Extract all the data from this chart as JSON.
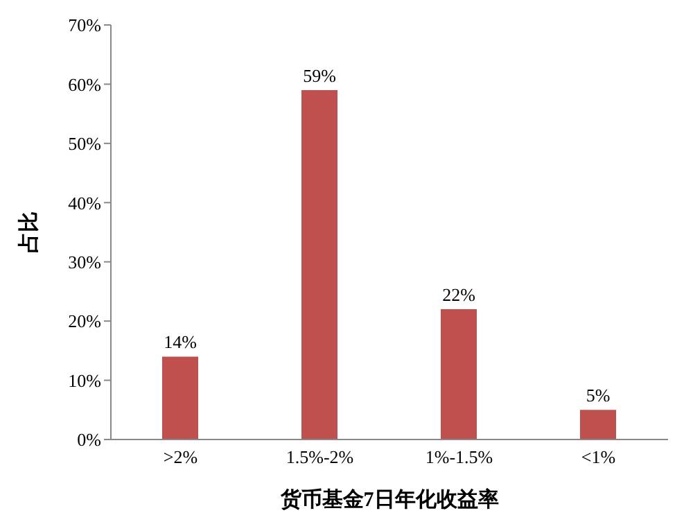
{
  "chart_data": {
    "type": "bar",
    "xlabel": "货币基金7日年化收益率",
    "ylabel": "占比",
    "categories": [
      ">2%",
      "1.5%-2%",
      "1%-1.5%",
      "<1%"
    ],
    "values": [
      14,
      59,
      22,
      5
    ],
    "value_labels": [
      "14%",
      "59%",
      "22%",
      "5%"
    ],
    "color": "#c0504d",
    "ylim": [
      0,
      70
    ],
    "yticks": [
      {
        "value": 0,
        "label": "0%"
      },
      {
        "value": 10,
        "label": "10%"
      },
      {
        "value": 20,
        "label": "20%"
      },
      {
        "value": 30,
        "label": "30%"
      },
      {
        "value": 40,
        "label": "40%"
      },
      {
        "value": 50,
        "label": "50%"
      },
      {
        "value": 60,
        "label": "60%"
      },
      {
        "value": 70,
        "label": "70%"
      }
    ],
    "grid": false,
    "legend": false
  }
}
